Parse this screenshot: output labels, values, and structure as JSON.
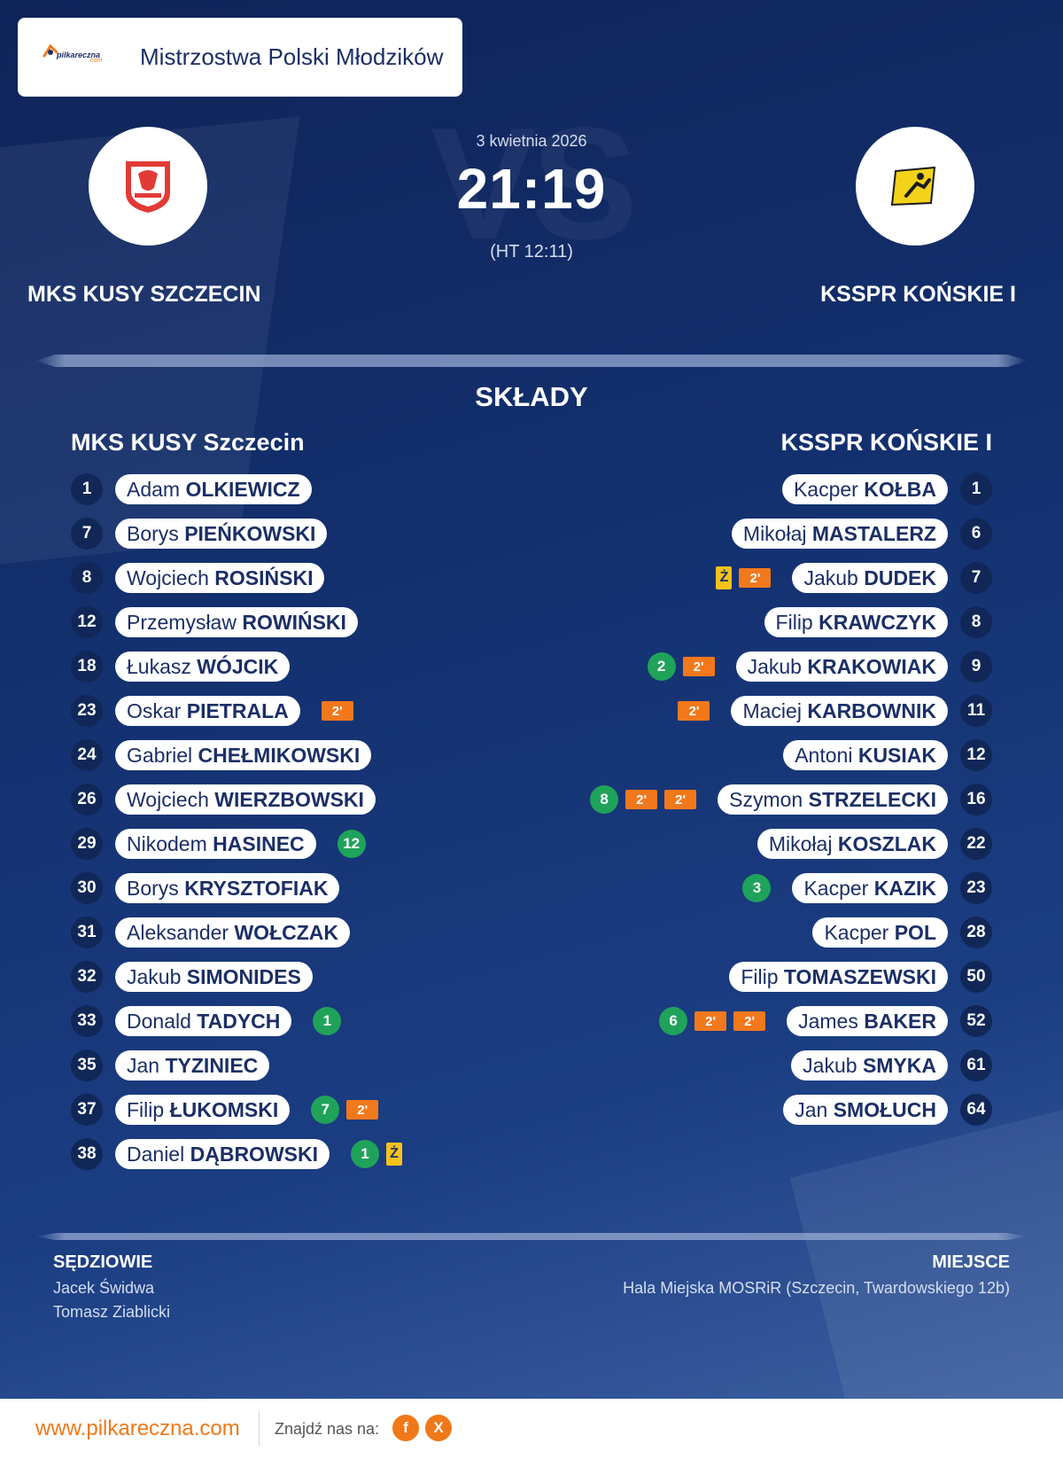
{
  "header": {
    "logo_text": "pilkareczna",
    "logo_sub": ".com",
    "competition": "Mistrzostwa Polski Młodzików"
  },
  "match": {
    "date": "3 kwietnia 2026",
    "score": "21:19",
    "halftime": "(HT 12:11)",
    "vs_watermark": "VS",
    "home_team": "MKS KUSY SZCZECIN",
    "away_team": "KSSPR KOŃSKIE I"
  },
  "lineups": {
    "title": "SKŁADY",
    "home_title": "MKS KUSY Szczecin",
    "away_title": "KSSPR KOŃSKIE I",
    "home": [
      {
        "number": "1",
        "first": "Adam",
        "last": "OLKIEWICZ",
        "events": []
      },
      {
        "number": "7",
        "first": "Borys",
        "last": "PIEŃKOWSKI",
        "events": []
      },
      {
        "number": "8",
        "first": "Wojciech",
        "last": "ROSIŃSKI",
        "events": []
      },
      {
        "number": "12",
        "first": "Przemysław",
        "last": "ROWIŃSKI",
        "events": []
      },
      {
        "number": "18",
        "first": "Łukasz",
        "last": "WÓJCIK",
        "events": []
      },
      {
        "number": "23",
        "first": "Oskar",
        "last": "PIETRALA",
        "events": [
          {
            "type": "suspension",
            "label": "2'"
          }
        ]
      },
      {
        "number": "24",
        "first": "Gabriel",
        "last": "CHEŁMIKOWSKI",
        "events": []
      },
      {
        "number": "26",
        "first": "Wojciech",
        "last": "WIERZBOWSKI",
        "events": []
      },
      {
        "number": "29",
        "first": "Nikodem",
        "last": "HASINEC",
        "events": [
          {
            "type": "goals",
            "label": "12"
          }
        ]
      },
      {
        "number": "30",
        "first": "Borys",
        "last": "KRYSZTOFIAK",
        "events": []
      },
      {
        "number": "31",
        "first": "Aleksander",
        "last": "WOŁCZAK",
        "events": []
      },
      {
        "number": "32",
        "first": "Jakub",
        "last": "SIMONIDES",
        "events": []
      },
      {
        "number": "33",
        "first": "Donald",
        "last": "TADYCH",
        "events": [
          {
            "type": "goals",
            "label": "1"
          }
        ]
      },
      {
        "number": "35",
        "first": "Jan",
        "last": "TYZINIEC",
        "events": []
      },
      {
        "number": "37",
        "first": "Filip",
        "last": "ŁUKOMSKI",
        "events": [
          {
            "type": "goals",
            "label": "7"
          },
          {
            "type": "suspension",
            "label": "2'"
          }
        ]
      },
      {
        "number": "38",
        "first": "Daniel",
        "last": "DĄBROWSKI",
        "events": [
          {
            "type": "goals",
            "label": "1"
          },
          {
            "type": "yellow",
            "label": "Ż"
          }
        ]
      }
    ],
    "away": [
      {
        "number": "1",
        "first": "Kacper",
        "last": "KOŁBA",
        "events": []
      },
      {
        "number": "6",
        "first": "Mikołaj",
        "last": "MASTALERZ",
        "events": []
      },
      {
        "number": "7",
        "first": "Jakub",
        "last": "DUDEK",
        "events": [
          {
            "type": "yellow",
            "label": "Ż"
          },
          {
            "type": "suspension",
            "label": "2'"
          }
        ]
      },
      {
        "number": "8",
        "first": "Filip",
        "last": "KRAWCZYK",
        "events": []
      },
      {
        "number": "9",
        "first": "Jakub",
        "last": "KRAKOWIAK",
        "events": [
          {
            "type": "goals",
            "label": "2"
          },
          {
            "type": "suspension",
            "label": "2'"
          }
        ]
      },
      {
        "number": "11",
        "first": "Maciej",
        "last": "KARBOWNIK",
        "events": [
          {
            "type": "suspension",
            "label": "2'"
          }
        ]
      },
      {
        "number": "12",
        "first": "Antoni",
        "last": "KUSIAK",
        "events": []
      },
      {
        "number": "16",
        "first": "Szymon",
        "last": "STRZELECKI",
        "events": [
          {
            "type": "goals",
            "label": "8"
          },
          {
            "type": "suspension",
            "label": "2'"
          },
          {
            "type": "suspension",
            "label": "2'"
          }
        ]
      },
      {
        "number": "22",
        "first": "Mikołaj",
        "last": "KOSZLAK",
        "events": []
      },
      {
        "number": "23",
        "first": "Kacper",
        "last": "KAZIK",
        "events": [
          {
            "type": "goals",
            "label": "3"
          }
        ]
      },
      {
        "number": "28",
        "first": "Kacper",
        "last": "POL",
        "events": []
      },
      {
        "number": "50",
        "first": "Filip",
        "last": "TOMASZEWSKI",
        "events": []
      },
      {
        "number": "52",
        "first": "James",
        "last": "BAKER",
        "events": [
          {
            "type": "goals",
            "label": "6"
          },
          {
            "type": "suspension",
            "label": "2'"
          },
          {
            "type": "suspension",
            "label": "2'"
          }
        ]
      },
      {
        "number": "61",
        "first": "Jakub",
        "last": "SMYKA",
        "events": []
      },
      {
        "number": "64",
        "first": "Jan",
        "last": "SMOŁUCH",
        "events": []
      }
    ]
  },
  "officials": {
    "title": "SĘDZIOWIE",
    "names": [
      "Jacek Świdwa",
      "Tomasz Ziablicki"
    ]
  },
  "venue": {
    "title": "MIEJSCE",
    "name": "Hala Miejska MOSRiR (Szczecin, Twardowskiego 12b)"
  },
  "footer": {
    "site": "www.pilkareczna.com",
    "find_label": "Znajdź nas na:",
    "facebook": "f",
    "x": "X"
  },
  "colors": {
    "navy": "#102757",
    "goal_green": "#1fa35a",
    "suspension_orange": "#f2781c",
    "yellow_card": "#f4c21a",
    "brand_orange": "#f07818"
  }
}
